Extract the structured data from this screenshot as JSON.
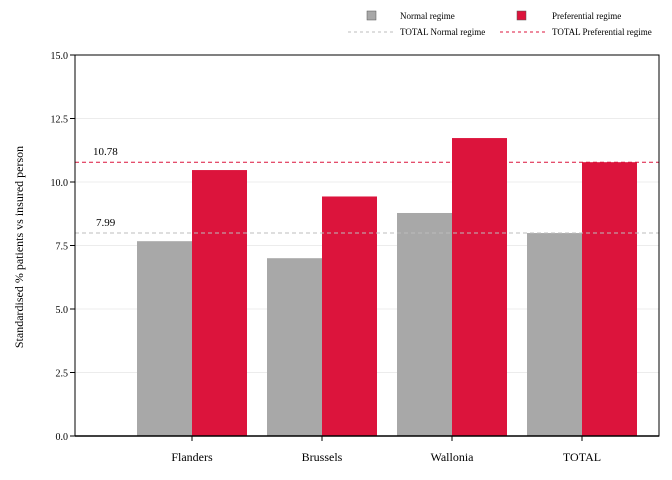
{
  "chart_data": {
    "type": "bar",
    "categories": [
      "Flanders",
      "Brussels",
      "Wallonia",
      "TOTAL"
    ],
    "series": [
      {
        "name": "Normal regime",
        "color": "#a8a8a8",
        "values": [
          7.67,
          7.0,
          8.78,
          7.99
        ]
      },
      {
        "name": "Preferential regime",
        "color": "#dc143c",
        "values": [
          10.47,
          9.43,
          11.73,
          10.78
        ]
      }
    ],
    "reference_lines": [
      {
        "name": "TOTAL Normal regime",
        "value": 7.99,
        "label": "7.99",
        "color": "#bdbdbd"
      },
      {
        "name": "TOTAL Preferential regime",
        "value": 10.78,
        "label": "10.78",
        "color": "#dc143c"
      }
    ],
    "ylabel": "Standardised % patients vs insured person",
    "ylim": [
      0,
      15
    ],
    "yticks": [
      "0.0",
      "2.5",
      "5.0",
      "7.5",
      "10.0",
      "12.5",
      "15.0"
    ],
    "grid": true,
    "legend_position": "top"
  }
}
